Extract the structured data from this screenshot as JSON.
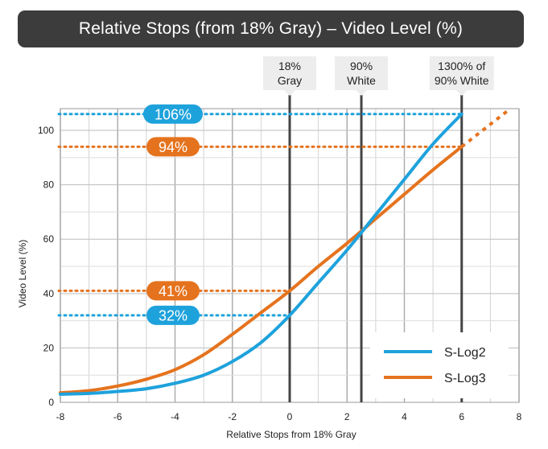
{
  "colors": {
    "slog2": "#1ea2dc",
    "slog3": "#e5731e",
    "ref_line": "#444444",
    "grid": "#bbbbbb",
    "title_bg": "#3c3c3c",
    "ref_box": "#ededed"
  },
  "chart_data": {
    "type": "line",
    "title": "Relative Stops (from 18% Gray) – Video Level (%)",
    "xlabel": "Relative Stops from 18% Gray",
    "ylabel": "Video Level (%)",
    "xlim": [
      -8,
      8
    ],
    "ylim": [
      0,
      108
    ],
    "xticks": [
      "-8",
      "-6",
      "-4",
      "-2",
      "0",
      "2",
      "4",
      "6",
      "8"
    ],
    "yticks": [
      "0",
      "20",
      "40",
      "60",
      "80",
      "100"
    ],
    "grid": true,
    "legend_position": "bottom-right",
    "series": [
      {
        "name": "S-Log2",
        "color": "#1ea2dc",
        "x": [
          -8,
          -7,
          -6,
          -5,
          -4,
          -3,
          -2,
          -1,
          0,
          1,
          2,
          3,
          4,
          5,
          6
        ],
        "y": [
          3,
          3.3,
          4,
          5,
          7,
          10,
          15,
          22,
          32,
          44,
          56,
          69,
          82,
          95,
          106
        ]
      },
      {
        "name": "S-Log3",
        "color": "#e5731e",
        "x": [
          -8,
          -7,
          -6,
          -5,
          -4,
          -3,
          -2,
          -1,
          0,
          1,
          2,
          3,
          4,
          5,
          6
        ],
        "y": [
          3.5,
          4.3,
          6,
          8.5,
          12,
          17.5,
          25,
          33,
          41,
          50,
          58.5,
          67.5,
          76.5,
          85.5,
          94
        ],
        "extension": {
          "x": [
            6,
            7.7
          ],
          "y": [
            94,
            108
          ],
          "style": "dotted"
        }
      }
    ],
    "reference_lines": [
      {
        "x": 0,
        "label": [
          "18%",
          "Gray"
        ]
      },
      {
        "x": 2.5,
        "label": [
          "90%",
          "White"
        ]
      },
      {
        "x": 6,
        "label": [
          "1300% of",
          "90% White"
        ]
      }
    ],
    "level_markers": [
      {
        "y": 106,
        "label": "106%",
        "series": "S-Log2",
        "color": "#1ea2dc",
        "line_to_x": 6
      },
      {
        "y": 94,
        "label": "94%",
        "series": "S-Log3",
        "color": "#e5731e",
        "line_to_x": 6
      },
      {
        "y": 41,
        "label": "41%",
        "series": "S-Log3",
        "color": "#e5731e",
        "line_to_x": 0
      },
      {
        "y": 32,
        "label": "32%",
        "series": "S-Log2",
        "color": "#1ea2dc",
        "line_to_x": 0
      }
    ]
  }
}
